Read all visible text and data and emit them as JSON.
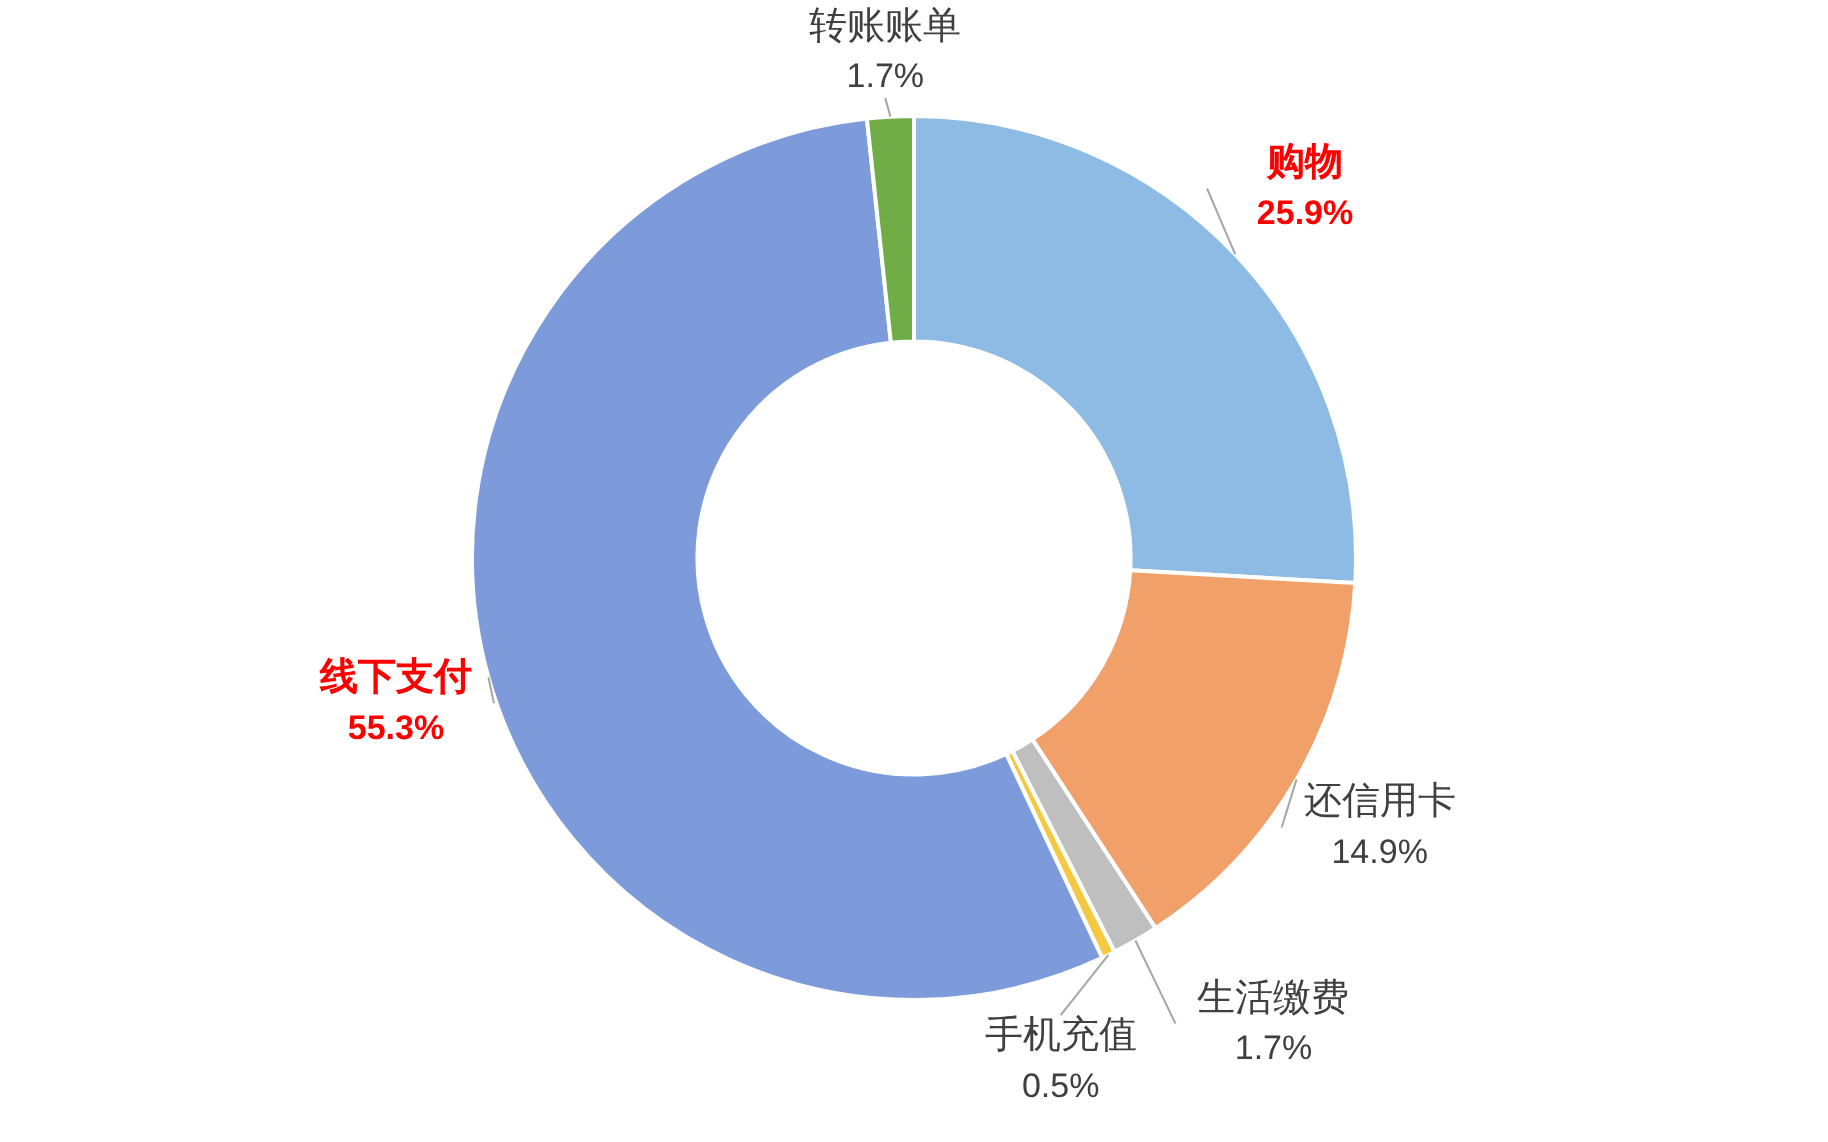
{
  "chart_data": {
    "type": "donut",
    "categories": [
      "购物",
      "还信用卡",
      "生活缴费",
      "手机充值",
      "线下支付",
      "转账账单"
    ],
    "values": [
      25.9,
      14.9,
      1.7,
      0.5,
      55.3,
      1.7
    ],
    "colors": [
      "#8dbbe4",
      "#f2a06a",
      "#bfbfbf",
      "#f5c842",
      "#7d9bdb",
      "#70ad47"
    ],
    "value_labels": [
      "25.9%",
      "14.9%",
      "1.7%",
      "0.5%",
      "55.3%",
      "1.7%"
    ],
    "legend": false
  }
}
